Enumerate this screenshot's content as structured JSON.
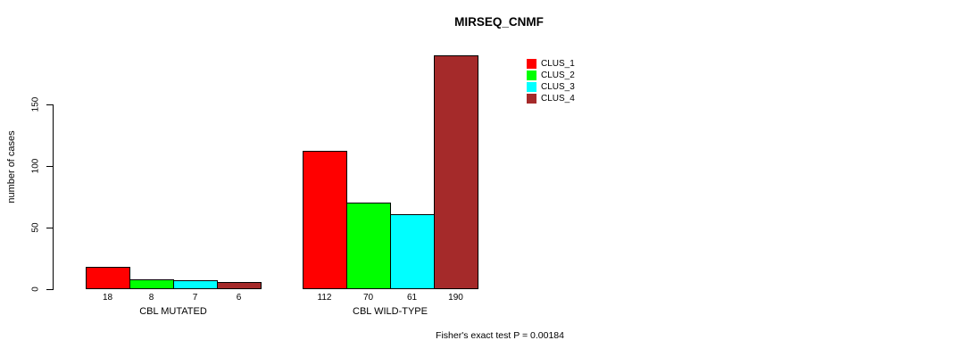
{
  "chart_data": {
    "type": "bar",
    "title": "MIRSEQ_CNMF",
    "ylabel": "number of cases",
    "xlabel": "",
    "categories": [
      "CBL MUTATED",
      "CBL WILD-TYPE"
    ],
    "series": [
      {
        "name": "CLUS_1",
        "color": "#ff0000",
        "values": [
          18,
          112
        ]
      },
      {
        "name": "CLUS_2",
        "color": "#00ff00",
        "values": [
          8,
          70
        ]
      },
      {
        "name": "CLUS_3",
        "color": "#00ffff",
        "values": [
          7,
          61
        ]
      },
      {
        "name": "CLUS_4",
        "color": "#a52a2a",
        "values": [
          6,
          190
        ]
      }
    ],
    "yticks": [
      0,
      50,
      100,
      150
    ],
    "ylim": [
      0,
      150
    ],
    "grid": false,
    "bars_labeled_below": true,
    "legend_position": "top-right",
    "annotation": "Fisher's exact test P = 0.00184"
  }
}
